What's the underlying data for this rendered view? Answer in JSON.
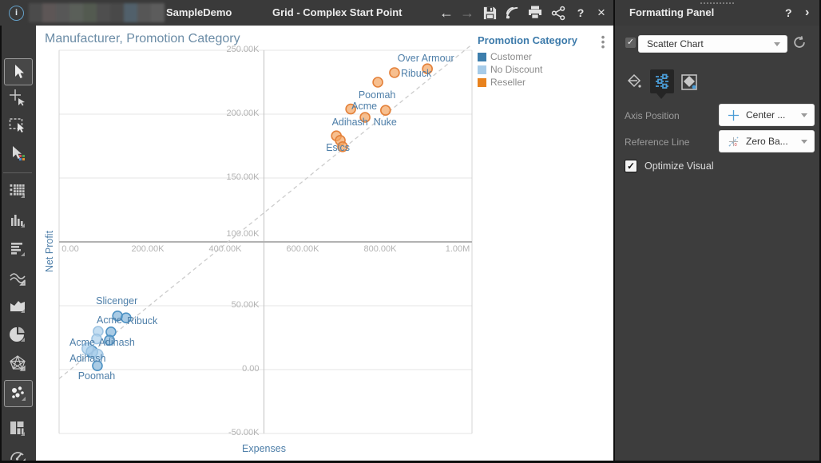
{
  "titlebar": {
    "app_label": "SampleDemo",
    "document_title": "Grid - Complex Start Point",
    "help_label": "?",
    "close_label": "×",
    "back_glyph": "←",
    "forward_glyph": "→",
    "redacted_colors": [
      "#4b4b4b",
      "#5d5656",
      "#575757",
      "#5a5f59",
      "#535a50",
      "#4e4e4e",
      "#494949",
      "#51606b",
      "#565656",
      "#5c5c5c"
    ]
  },
  "left_toolbar": {
    "items": [
      {
        "name": "pointer-tool",
        "selected": true
      },
      {
        "name": "add-pointer-tool",
        "selected": false
      },
      {
        "name": "marquee-select-tool",
        "selected": false
      },
      {
        "name": "multi-select-tool",
        "selected": false
      },
      {
        "name": "divider",
        "selected": false
      },
      {
        "name": "grid-tool",
        "selected": false
      },
      {
        "name": "bar-chart-tool",
        "selected": false
      },
      {
        "name": "row-chart-tool",
        "selected": false
      },
      {
        "name": "line-chart-tool",
        "selected": false
      },
      {
        "name": "area-chart-tool",
        "selected": false
      },
      {
        "name": "pie-chart-tool",
        "selected": false
      },
      {
        "name": "radar-chart-tool",
        "selected": false
      },
      {
        "name": "scatter-chart-tool",
        "selected": true
      },
      {
        "name": "treemap-tool",
        "selected": false
      },
      {
        "name": "gauge-tool",
        "selected": false
      }
    ]
  },
  "legend": {
    "title": "Promotion Category",
    "items": [
      {
        "label": "Customer",
        "color": "#3d7eac"
      },
      {
        "label": "No Discount",
        "color": "#a6cbe8"
      },
      {
        "label": "Reseller",
        "color": "#e8821e"
      }
    ]
  },
  "chart_data": {
    "type": "scatter",
    "title": "Manufacturer, Promotion Category",
    "xlabel": "Expenses",
    "ylabel": "Net Profit",
    "unit": "thousands",
    "xlim": [
      0,
      1000
    ],
    "ylim": [
      -50,
      250
    ],
    "x_ticks": [
      {
        "v": 0,
        "label": "0.00"
      },
      {
        "v": 200,
        "label": "200.00K"
      },
      {
        "v": 400,
        "label": "400.00K"
      },
      {
        "v": 600,
        "label": "600.00K"
      },
      {
        "v": 800,
        "label": "800.00K"
      },
      {
        "v": 1000,
        "label": "1.00M"
      }
    ],
    "y_ticks": [
      {
        "v": 250,
        "label": "250.00K"
      },
      {
        "v": 200,
        "label": "200.00K"
      },
      {
        "v": 150,
        "label": "150.00K"
      },
      {
        "v": 100,
        "label": "100.00K"
      },
      {
        "v": 50,
        "label": "50.00K"
      },
      {
        "v": 0,
        "label": "0.00"
      },
      {
        "v": -50,
        "label": "-50.00K"
      }
    ],
    "axis_position": "center",
    "reference_line": {
      "name": "Zero Baseline",
      "slope": 0.2455,
      "intercept": 0,
      "style": "dashed"
    },
    "series": [
      {
        "name": "Customer",
        "stroke": "#4f93c4",
        "fill": "rgba(111,168,212,0.6)",
        "points": [
          {
            "x": 122,
            "y": 42,
            "manufacturer": "Slicenger"
          },
          {
            "x": 144,
            "y": 40.5,
            "manufacturer": "Ribuck"
          },
          {
            "x": 105,
            "y": 29.5,
            "manufacturer": "Acme"
          },
          {
            "x": 101,
            "y": 23,
            "manufacturer": "Adihash"
          },
          {
            "x": 56,
            "y": 14,
            "manufacturer": "Adihash",
            "r": 7
          },
          {
            "x": 70,
            "y": 3,
            "manufacturer": "Poomah"
          }
        ]
      },
      {
        "name": "No Discount",
        "stroke": "#9dc3e2",
        "fill": "rgba(176,211,238,0.75)",
        "points": [
          {
            "x": 72,
            "y": 30
          },
          {
            "x": 68,
            "y": 24
          },
          {
            "x": 45,
            "y": 16.5,
            "r": 7
          },
          {
            "x": 70,
            "y": 11.5,
            "r": 7
          }
        ]
      },
      {
        "name": "Reseller",
        "stroke": "#e4813a",
        "fill": "rgba(243,164,95,0.7)",
        "points": [
          {
            "x": 922,
            "y": 235.5,
            "manufacturer": "Over Armour"
          },
          {
            "x": 837,
            "y": 232.5,
            "manufacturer": "Ribuck"
          },
          {
            "x": 794,
            "y": 225,
            "manufacturer": "Poomah"
          },
          {
            "x": 814,
            "y": 203,
            "manufacturer": "Nuke"
          },
          {
            "x": 761,
            "y": 197.5,
            "manufacturer": "Adihash"
          },
          {
            "x": 724,
            "y": 204,
            "manufacturer": "Acme"
          },
          {
            "x": 687,
            "y": 183
          },
          {
            "x": 697,
            "y": 179.5
          },
          {
            "x": 703,
            "y": 174.5,
            "manufacturer": "Esics"
          }
        ]
      }
    ],
    "annotations": [
      {
        "text": "Over Armour",
        "x": 918,
        "y": 244
      },
      {
        "text": "Ribuck",
        "x": 893,
        "y": 232
      },
      {
        "text": "Poomah",
        "x": 792,
        "y": 215
      },
      {
        "text": "Acme",
        "x": 759,
        "y": 206
      },
      {
        "text": "Nuke",
        "x": 813,
        "y": 194
      },
      {
        "text": "Adihash",
        "x": 722,
        "y": 194
      },
      {
        "text": "Esics",
        "x": 691,
        "y": 174
      },
      {
        "text": "Slicenger",
        "x": 120,
        "y": 54
      },
      {
        "text": "Acme",
        "x": 101,
        "y": 39
      },
      {
        "text": "Ribuck",
        "x": 186,
        "y": 38
      },
      {
        "text": "Acme",
        "x": 31,
        "y": 21
      },
      {
        "text": "Adihash",
        "x": 120,
        "y": 21
      },
      {
        "text": "Adihash",
        "x": 45,
        "y": 9
      },
      {
        "text": "Poomah",
        "x": 68,
        "y": -5
      }
    ]
  },
  "formatting_panel": {
    "title": "Formatting Panel",
    "help_label": "?",
    "collapse_label": "›",
    "chart_type": {
      "checked": true,
      "value": "Scatter Chart"
    },
    "tabs": [
      "style-tab",
      "options-tab",
      "coloring-tab"
    ],
    "active_tab": "options-tab",
    "fields": [
      {
        "label": "Axis Position",
        "value": "Center ...",
        "icon": "center-axis-icon"
      },
      {
        "label": "Reference Line",
        "value": "Zero Ba...",
        "icon": "zero-baseline-icon"
      }
    ],
    "optimize_visual": {
      "label": "Optimize Visual",
      "checked": true
    }
  }
}
